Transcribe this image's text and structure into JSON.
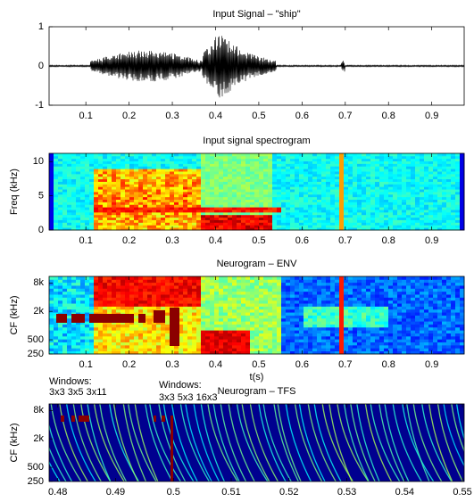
{
  "chart_data": [
    {
      "type": "line",
      "title": "Input Signal – \"ship\"",
      "xlim": [
        0.015,
        0.975
      ],
      "xticks": [
        0.1,
        0.2,
        0.3,
        0.4,
        0.5,
        0.6,
        0.7,
        0.8,
        0.9
      ],
      "ylim": [
        -1,
        1
      ],
      "yticks": [
        -1,
        0,
        1
      ],
      "color": "#000000"
    },
    {
      "type": "heatmap",
      "title": "Input signal spectrogram",
      "ylabel": "Freq (kHz)",
      "xlim": [
        0.015,
        0.975
      ],
      "xticks": [
        0.1,
        0.2,
        0.3,
        0.4,
        0.5,
        0.6,
        0.7,
        0.8,
        0.9
      ],
      "ylim": [
        0,
        11.2
      ],
      "yticks": [
        0,
        5,
        10
      ]
    },
    {
      "type": "heatmap",
      "title": "Neurogram – ENV",
      "ylabel": "CF (kHz)",
      "xlabel": "t(s)",
      "log_y": true,
      "xlim": [
        0.015,
        0.975
      ],
      "xticks": [
        0.1,
        0.2,
        0.3,
        0.4,
        0.5,
        0.6,
        0.7,
        0.8,
        0.9
      ],
      "ylim": [
        250,
        11000
      ],
      "yticks": [
        {
          "value": 8000,
          "label": "8k"
        },
        {
          "value": 2000,
          "label": "2k"
        },
        500,
        250
      ],
      "annotations": [
        "Windows:",
        "3x3 3x5 3x11",
        "Windows:",
        "3x3 5x3 16x3"
      ]
    },
    {
      "type": "heatmap-tfs",
      "title": "Neurogram – TFS",
      "ylabel": "CF (kHz)",
      "log_y": true,
      "xlim": [
        0.4785,
        0.5503
      ],
      "xticks": [
        0.48,
        0.49,
        0.5,
        0.51,
        0.52,
        0.53,
        0.54,
        0.55
      ],
      "ylim": [
        250,
        11000
      ],
      "yticks": [
        {
          "value": 8000,
          "label": "8k"
        },
        {
          "value": 2000,
          "label": "2k"
        },
        500,
        250
      ]
    }
  ]
}
